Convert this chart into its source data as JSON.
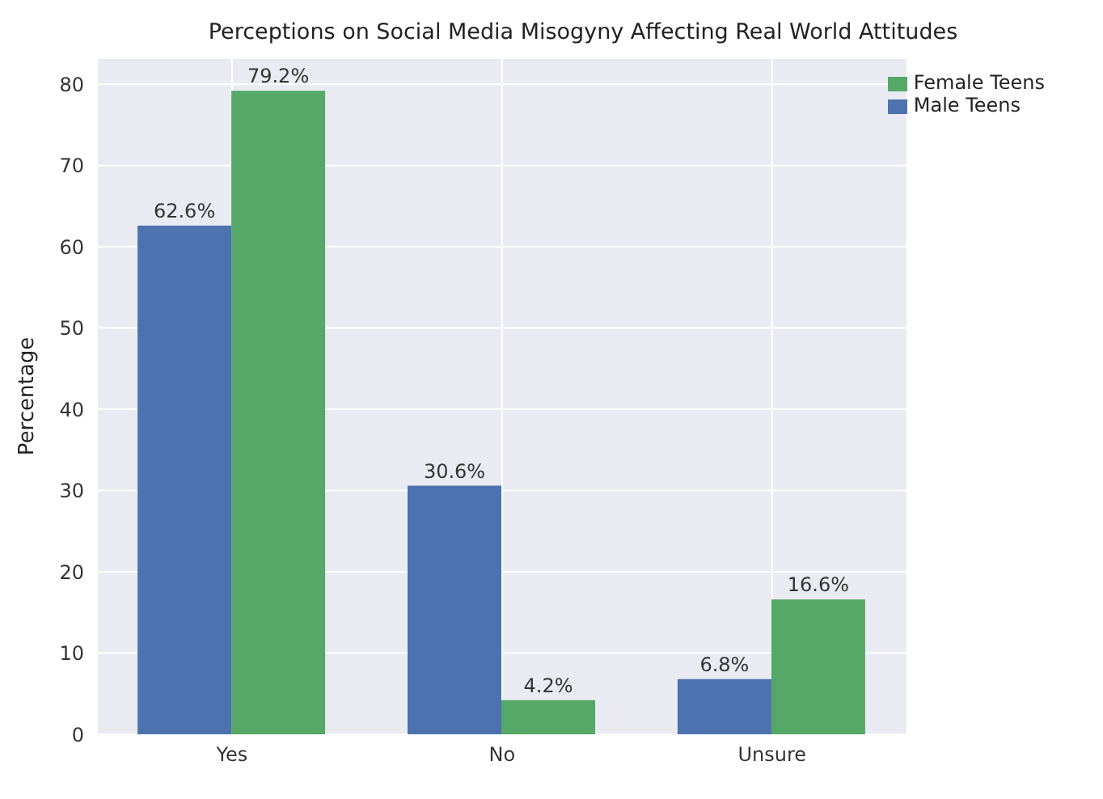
{
  "chart_data": {
    "type": "bar",
    "title": "Perceptions on Social Media Misogyny Affecting Real World Attitudes",
    "ylabel": "Percentage",
    "categories": [
      "Yes",
      "No",
      "Unsure"
    ],
    "series": [
      {
        "name": "Male Teens",
        "color": "#4c72b0",
        "values": [
          62.6,
          30.6,
          6.8
        ],
        "value_labels": [
          "62.6%",
          "30.6%",
          "6.8%"
        ]
      },
      {
        "name": "Female Teens",
        "color": "#55a868",
        "values": [
          79.2,
          4.2,
          16.6
        ],
        "value_labels": [
          "79.2%",
          "4.2%",
          "16.6%"
        ]
      }
    ],
    "ylim": [
      0,
      83.2
    ],
    "yticks": [
      0,
      10,
      20,
      30,
      40,
      50,
      60,
      70,
      80
    ],
    "grid": true,
    "legend": "top right"
  }
}
